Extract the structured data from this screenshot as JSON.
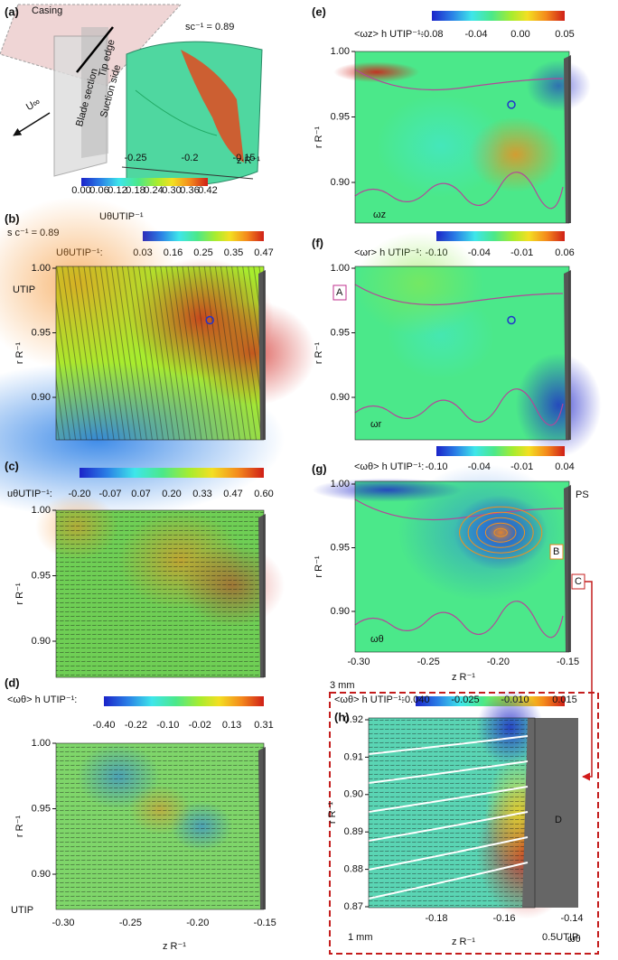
{
  "panels": [
    {
      "label": "(a)",
      "texts": [
        "Casing",
        "sc⁻¹ = 0.89",
        "U∞",
        "Blade section",
        "Tip edge",
        "Suction side"
      ],
      "colorbar_label": "UθUTIP⁻¹",
      "colorbar_ticks": [
        "0.00",
        "0.06",
        "0.12",
        "0.18",
        "0.24",
        "0.30",
        "0.36",
        "0.42"
      ],
      "xticks": [
        "-0.25",
        "-0.2",
        "-0.15"
      ],
      "xlabel": "z R⁻¹"
    },
    {
      "label": "(b)",
      "subtitle": "s c⁻¹ = 0.89",
      "colorbar_label": "UθUTIP⁻¹:",
      "colorbar_ticks": [
        "0.03",
        "0.16",
        "0.25",
        "0.35",
        "0.47"
      ],
      "yticks": [
        "1.00",
        "0.95",
        "0.90"
      ],
      "ylabel": "r R⁻¹",
      "annotations": [
        "UTIP"
      ]
    },
    {
      "label": "(c)",
      "colorbar_label": "uθUTIP⁻¹:",
      "colorbar_ticks": [
        "-0.20",
        "-0.07",
        "0.07",
        "0.20",
        "0.33",
        "0.47",
        "0.60"
      ],
      "yticks": [
        "1.00",
        "0.95",
        "0.90"
      ],
      "ylabel": "r R⁻¹"
    },
    {
      "label": "(d)",
      "colorbar_label": "<ωθ> h UTIP⁻¹:",
      "colorbar_ticks": [
        "-0.40",
        "-0.22",
        "-0.10",
        "-0.02",
        "0.13",
        "0.31"
      ],
      "yticks": [
        "1.00",
        "0.95",
        "0.90"
      ],
      "ylabel": "r R⁻¹",
      "xticks": [
        "-0.30",
        "-0.25",
        "-0.20",
        "-0.15"
      ],
      "xlabel": "z R⁻¹",
      "annotations": [
        "UTIP"
      ]
    },
    {
      "label": "(e)",
      "colorbar_label": "<ωz> h UTIP⁻¹:",
      "colorbar_ticks": [
        "-0.08",
        "-0.04",
        "0.00",
        "0.05"
      ],
      "yticks": [
        "1.00",
        "0.95",
        "0.90"
      ],
      "ylabel": "r R⁻¹",
      "annotations": [
        "ωz"
      ]
    },
    {
      "label": "(f)",
      "colorbar_label": "<ωr> h UTIP⁻¹:",
      "colorbar_ticks": [
        "-0.10",
        "-0.04",
        "-0.01",
        "0.06"
      ],
      "yticks": [
        "1.00",
        "0.95",
        "0.90"
      ],
      "ylabel": "r R⁻¹",
      "annotations": [
        "A",
        "ωr"
      ]
    },
    {
      "label": "(g)",
      "colorbar_label": "<ωθ> h UTIP⁻¹:",
      "colorbar_ticks": [
        "-0.10",
        "-0.04",
        "-0.01",
        "0.04"
      ],
      "yticks": [
        "1.00",
        "0.95",
        "0.90"
      ],
      "ylabel": "r R⁻¹",
      "xticks": [
        "-0.30",
        "-0.25",
        "-0.20",
        "-0.15"
      ],
      "xlabel": "z R⁻¹",
      "annotations": [
        "PS",
        "B",
        "C",
        "3 mm",
        "ωθ"
      ]
    },
    {
      "label": "(h)",
      "colorbar_label": "<ωθ> h UTIP⁻¹:",
      "colorbar_ticks": [
        "-0.040",
        "-0.025",
        "-0.010",
        "0.015"
      ],
      "yticks": [
        "0.92",
        "0.91",
        "0.90",
        "0.89",
        "0.88",
        "0.87"
      ],
      "ylabel": "r R⁻¹",
      "xticks": [
        "-0.18",
        "-0.16",
        "-0.14"
      ],
      "xlabel": "z R⁻¹",
      "annotations": [
        "D",
        "1 mm",
        "0.5UTIP",
        "ωθ"
      ]
    }
  ]
}
